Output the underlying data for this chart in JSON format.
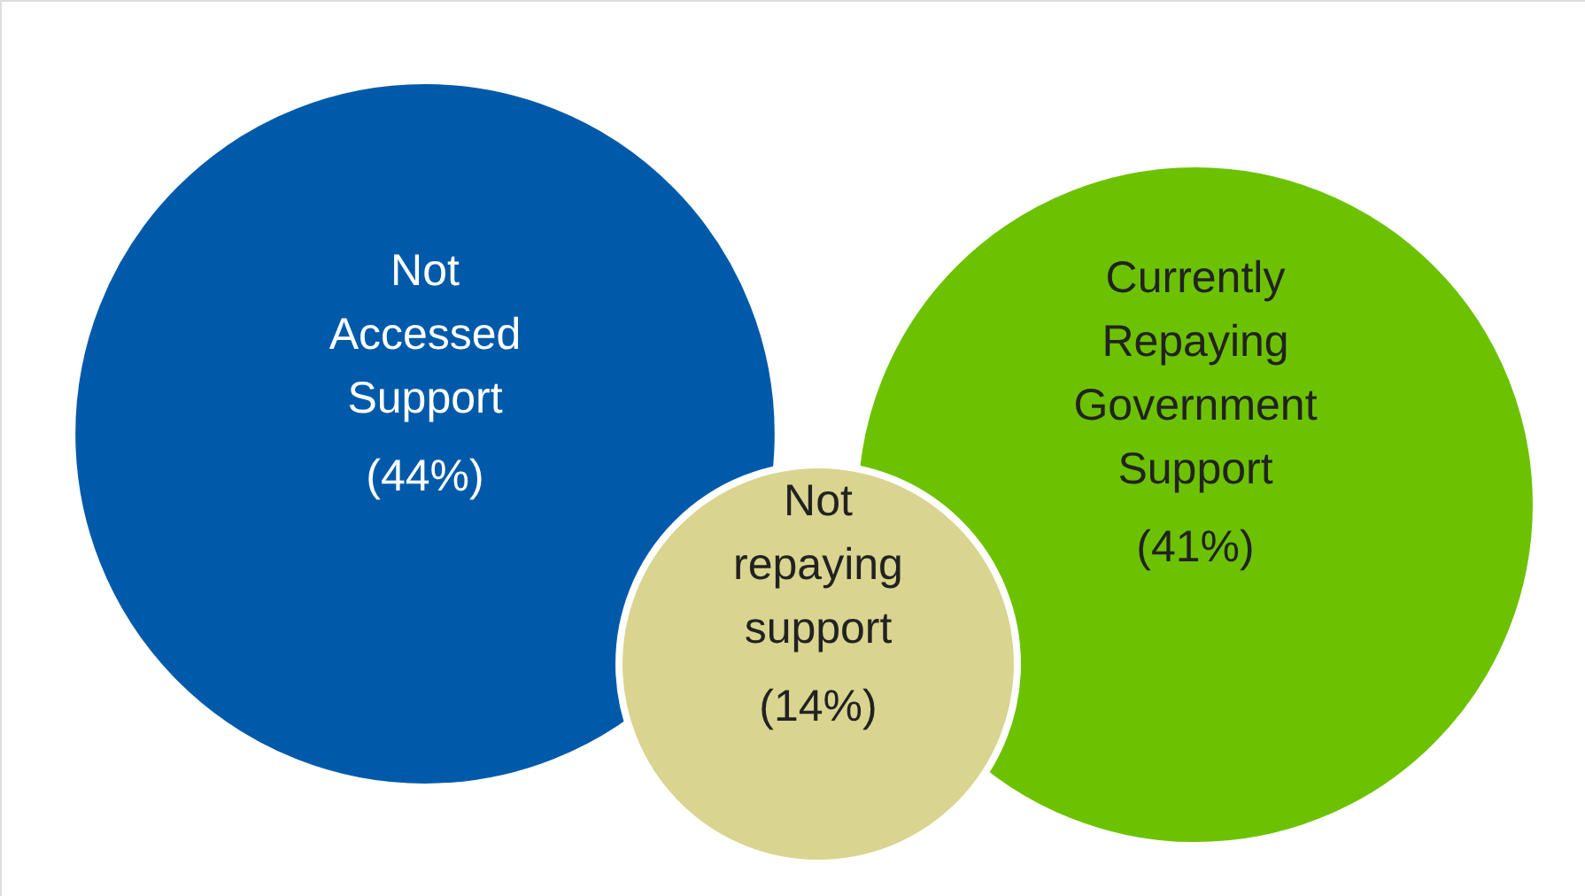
{
  "chart_data": {
    "type": "other",
    "categories": [
      "Not Accessed Support",
      "Currently Repaying Government Support",
      "Not repaying support"
    ],
    "values": [
      44,
      41,
      14
    ],
    "value_labels": [
      "(44%)",
      "(41%)",
      "(14%)"
    ],
    "colors": [
      "#005aa9",
      "#6cc200",
      "#d9d48f"
    ]
  }
}
